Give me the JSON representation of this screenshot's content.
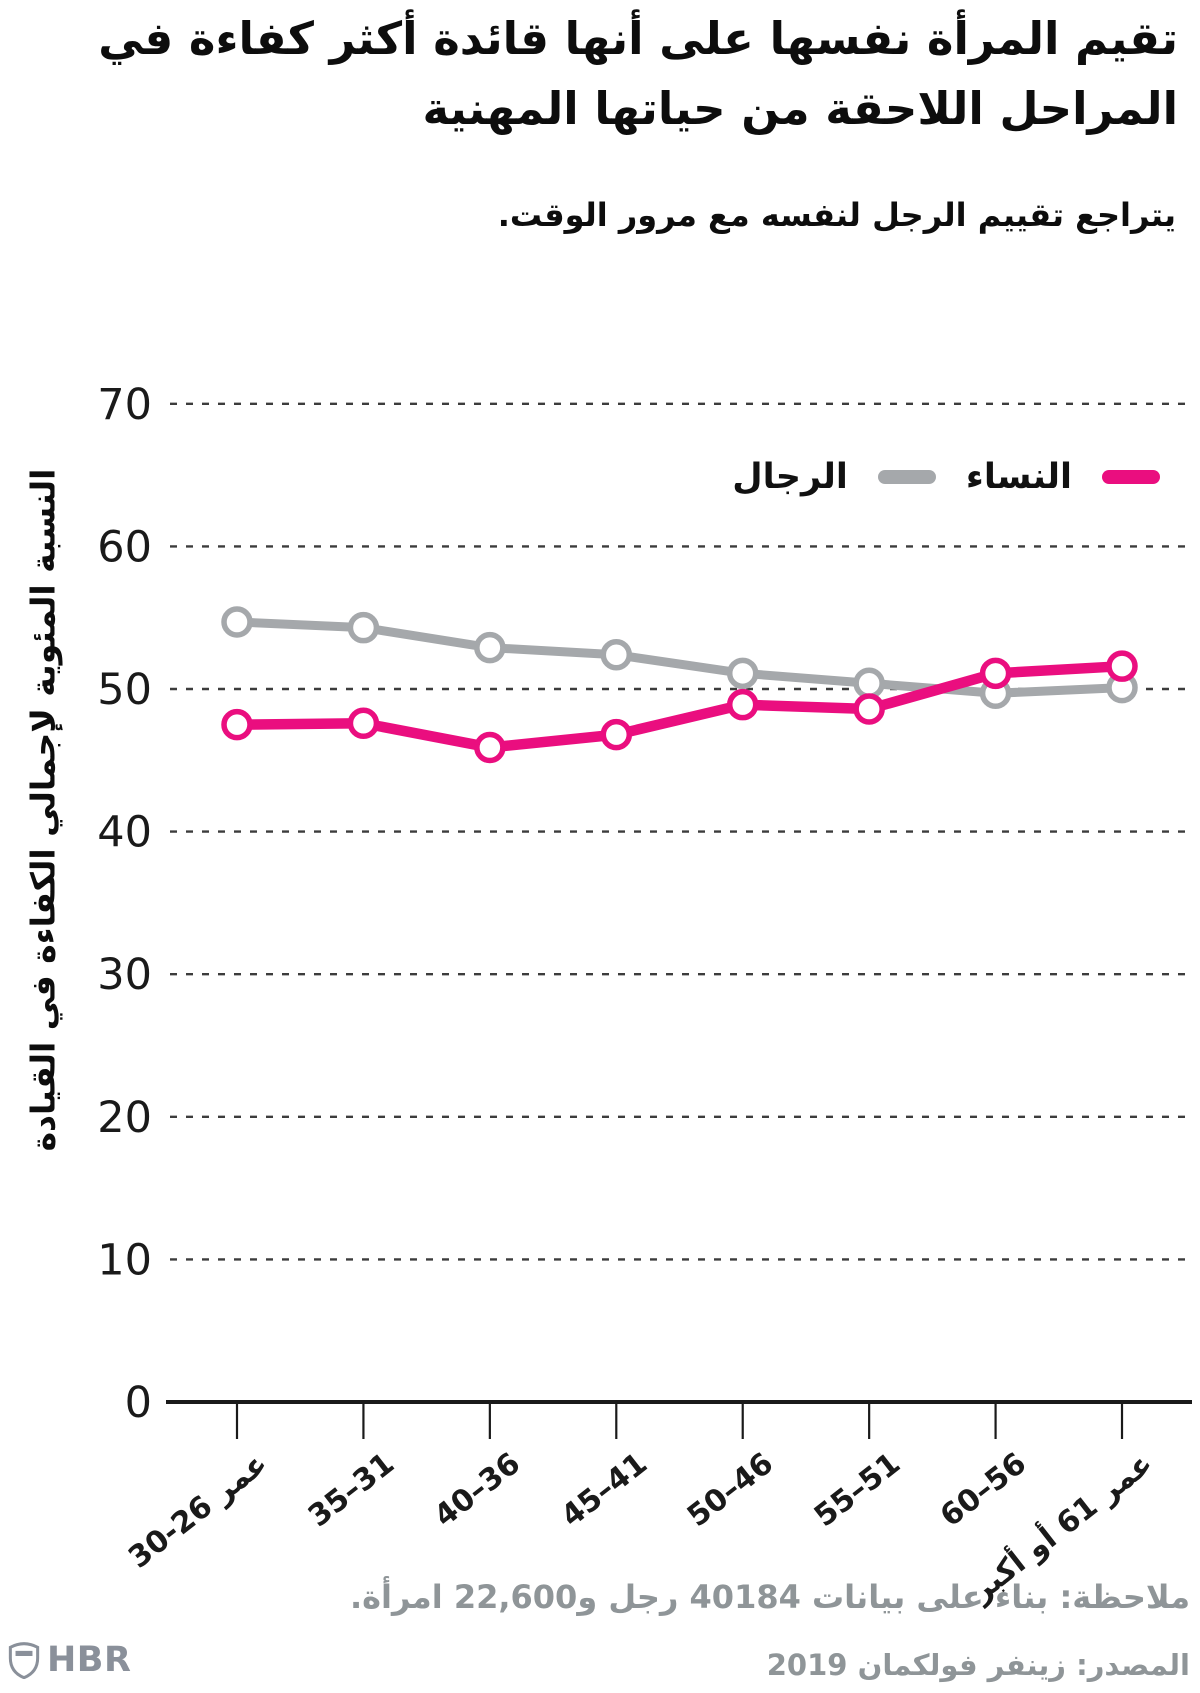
{
  "header": {
    "title_line1": "تقيم المرأة نفسها على أنها قائدة أكثر كفاءة في",
    "title_line2": "المراحل اللاحقة من حياتها المهنية",
    "subtitle": "يتراجع تقييم الرجل لنفسه مع مرور الوقت."
  },
  "chart_data": {
    "type": "line",
    "title": "تقيم المرأة نفسها على أنها قائدة أكثر كفاءة في المراحل اللاحقة من حياتها المهنية",
    "subtitle": "يتراجع تقييم الرجل لنفسه مع مرور الوقت.",
    "ylabel": "النسبة المئوية لإجمالي الكفاءة في القيادة",
    "xlabel": "",
    "categories": [
      "عمر 26-30",
      "31–35",
      "36–40",
      "41–45",
      "46–50",
      "51–55",
      "56–60",
      "عمر 61 أو أكبر"
    ],
    "series": [
      {
        "name": "النساء",
        "color": "#ea0e7f",
        "values": [
          47.5,
          47.6,
          45.9,
          46.8,
          48.9,
          48.6,
          51.1,
          51.6
        ]
      },
      {
        "name": "الرجال",
        "color": "#a5a8ab",
        "values": [
          54.7,
          54.3,
          52.9,
          52.4,
          51.1,
          50.4,
          49.7,
          50.1
        ]
      }
    ],
    "ylim": [
      0,
      70
    ],
    "y_ticks": [
      0,
      10,
      20,
      30,
      40,
      50,
      60,
      70
    ],
    "grid": "horizontal-dashed",
    "legend_position": "top-right",
    "marker": "open-circle"
  },
  "footer": {
    "note": "ملاحظة: بناء على بيانات 40184 رجل و22,600 امرأة.",
    "source": "المصدر: زينفر فولكمان 2019",
    "logo_text": "HBR"
  },
  "colors": {
    "women_pink": "#ea0e7f",
    "men_gray": "#a5a8ab",
    "footnote_gray": "#8f9598",
    "logo_gray": "#8a909a",
    "axis_black": "#1a1a1a"
  }
}
